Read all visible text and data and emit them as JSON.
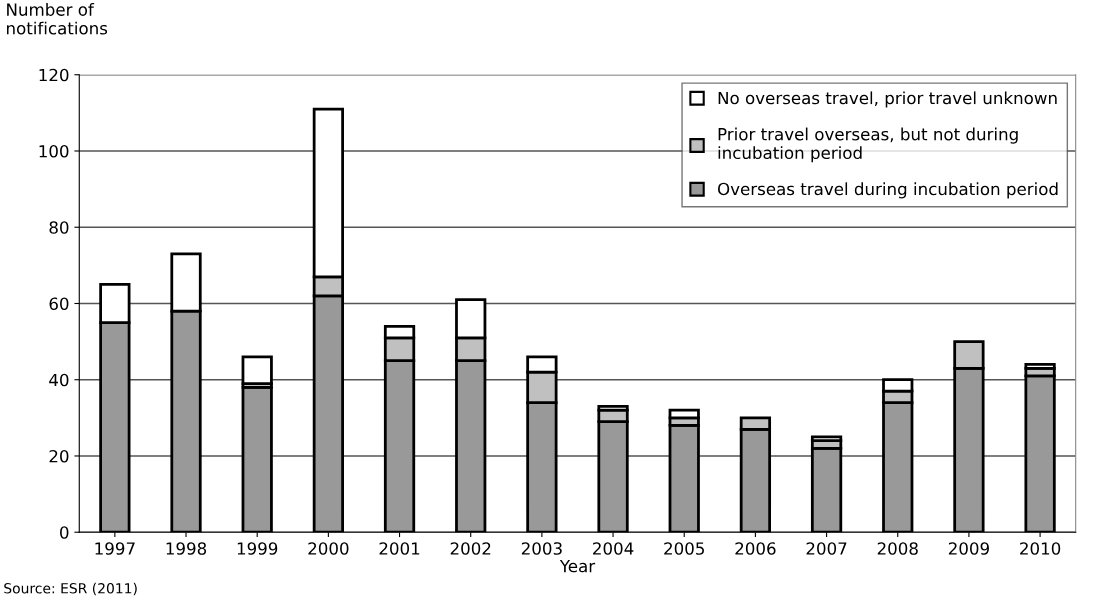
{
  "chart_data": {
    "type": "bar",
    "stacked": true,
    "xlabel": "Year",
    "ylabel": "Number of\nnotifications",
    "categories": [
      "1997",
      "1998",
      "1999",
      "2000",
      "2001",
      "2002",
      "2003",
      "2004",
      "2005",
      "2006",
      "2007",
      "2008",
      "2009",
      "2010"
    ],
    "series": [
      {
        "name": "Overseas travel during incubation period",
        "color": "#999999",
        "values": [
          55,
          58,
          38,
          62,
          45,
          45,
          34,
          29,
          28,
          27,
          22,
          34,
          43,
          41
        ]
      },
      {
        "name": "Prior travel overseas, but not during incubation period",
        "color": "#c0c0c0",
        "values": [
          0,
          0,
          1,
          5,
          6,
          6,
          8,
          3,
          2,
          3,
          2,
          3,
          7,
          2
        ]
      },
      {
        "name": "No overseas travel, prior travel unknown",
        "color": "#ffffff",
        "values": [
          10,
          15,
          7,
          44,
          3,
          10,
          4,
          1,
          2,
          0,
          1,
          3,
          0,
          1
        ]
      }
    ],
    "ylim": [
      0,
      120
    ],
    "yticks": [
      0,
      20,
      40,
      60,
      80,
      100,
      120
    ],
    "grid": "y",
    "legend": "top right",
    "annotations": [
      "Source: ESR (2011)"
    ]
  }
}
